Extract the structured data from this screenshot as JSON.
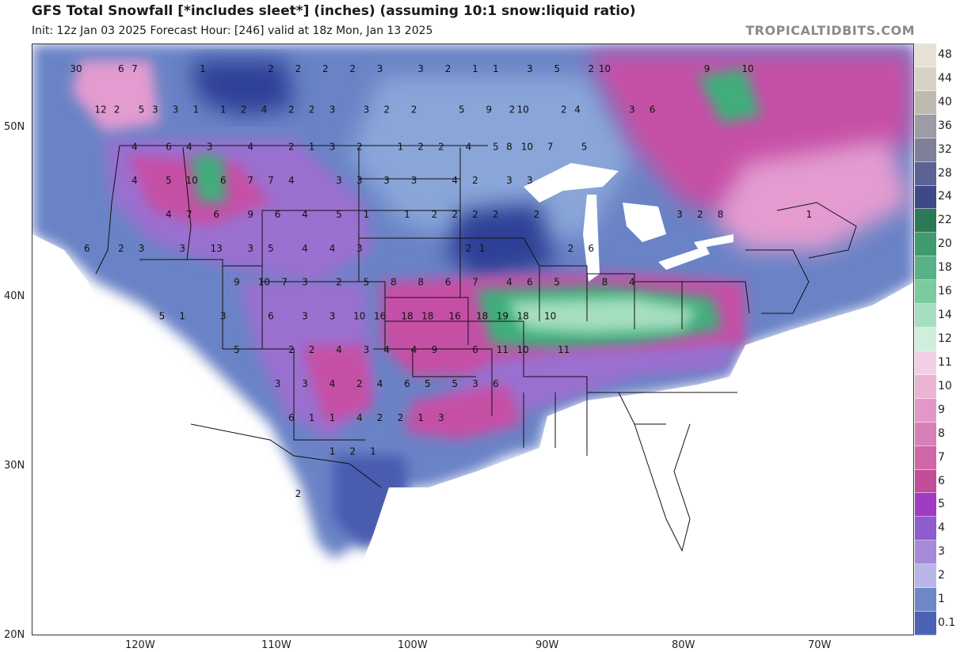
{
  "header": {
    "title": "GFS Total Snowfall [*includes sleet*] (inches) (assuming 10:1 snow:liquid ratio)",
    "subtitle": "Init: 12z Jan 03 2025   Forecast Hour: [246]   valid at 18z Mon, Jan 13 2025",
    "brand": "TROPICALTIDBITS.COM"
  },
  "axes": {
    "lat_labels": [
      "50N",
      "40N",
      "30N",
      "20N"
    ],
    "lon_labels": [
      "120W",
      "110W",
      "100W",
      "90W",
      "80W",
      "70W"
    ]
  },
  "colorbar": {
    "labels": [
      "48",
      "44",
      "40",
      "36",
      "32",
      "28",
      "24",
      "22",
      "20",
      "18",
      "16",
      "14",
      "12",
      "11",
      "10",
      "9",
      "8",
      "7",
      "6",
      "5",
      "4",
      "3",
      "2",
      "1",
      "0.1"
    ],
    "colors": [
      "#e6e3d6",
      "#d6d3c6",
      "#bdbab0",
      "#9c9ba6",
      "#7f7f99",
      "#5c6294",
      "#3e4a88",
      "#2a7a55",
      "#3f9a6e",
      "#58b287",
      "#7ccaa0",
      "#a6dec0",
      "#cfeedd",
      "#f2cfe4",
      "#ebb4d5",
      "#e198c7",
      "#d77fb8",
      "#cf66a8",
      "#c24d9a",
      "#a03ac0",
      "#8e5ccc",
      "#a58ad8",
      "#b8b6e6",
      "#6d88c4",
      "#4b62b5"
    ],
    "extra_colors": [
      "#4a5bb0",
      "#ffffff"
    ]
  },
  "map": {
    "colors": {
      "light_blue": "#8aa6d8",
      "mid_blue": "#6a83c6",
      "deep_blue": "#4a5bb0",
      "navy": "#2f3f96",
      "purple": "#9a6fd0",
      "magenta": "#c64fa6",
      "pink": "#e39bd0",
      "green": "#3fae7a",
      "land_white": "#ffffff",
      "water": "#ffffff"
    },
    "values": [
      {
        "t": "30",
        "lat": 53.6,
        "lon": -124.8
      },
      {
        "t": "6",
        "lat": 53.6,
        "lon": -121.5
      },
      {
        "t": "7",
        "lat": 53.6,
        "lon": -120.5
      },
      {
        "t": "1",
        "lat": 53.6,
        "lon": -115.5
      },
      {
        "t": "2",
        "lat": 53.6,
        "lon": -110.5
      },
      {
        "t": "2",
        "lat": 53.6,
        "lon": -108.5
      },
      {
        "t": "2",
        "lat": 53.6,
        "lon": -106.5
      },
      {
        "t": "2",
        "lat": 53.6,
        "lon": -104.5
      },
      {
        "t": "3",
        "lat": 53.6,
        "lon": -102.5
      },
      {
        "t": "3",
        "lat": 53.6,
        "lon": -99.5
      },
      {
        "t": "2",
        "lat": 53.6,
        "lon": -97.5
      },
      {
        "t": "1",
        "lat": 53.6,
        "lon": -95.5
      },
      {
        "t": "1",
        "lat": 53.6,
        "lon": -94.0
      },
      {
        "t": "3",
        "lat": 53.6,
        "lon": -91.5
      },
      {
        "t": "5",
        "lat": 53.6,
        "lon": -89.5
      },
      {
        "t": "2",
        "lat": 53.6,
        "lon": -87.0
      },
      {
        "t": "10",
        "lat": 53.6,
        "lon": -86.0
      },
      {
        "t": "9",
        "lat": 53.6,
        "lon": -78.5
      },
      {
        "t": "10",
        "lat": 53.6,
        "lon": -75.5
      },
      {
        "t": "12",
        "lat": 51.2,
        "lon": -123.0
      },
      {
        "t": "2",
        "lat": 51.2,
        "lon": -121.8
      },
      {
        "t": "5",
        "lat": 51.2,
        "lon": -120.0
      },
      {
        "t": "3",
        "lat": 51.2,
        "lon": -119.0
      },
      {
        "t": "3",
        "lat": 51.2,
        "lon": -117.5
      },
      {
        "t": "1",
        "lat": 51.2,
        "lon": -116.0
      },
      {
        "t": "1",
        "lat": 51.2,
        "lon": -114.0
      },
      {
        "t": "2",
        "lat": 51.2,
        "lon": -112.5
      },
      {
        "t": "4",
        "lat": 51.2,
        "lon": -111.0
      },
      {
        "t": "2",
        "lat": 51.2,
        "lon": -109.0
      },
      {
        "t": "2",
        "lat": 51.2,
        "lon": -107.5
      },
      {
        "t": "3",
        "lat": 51.2,
        "lon": -106.0
      },
      {
        "t": "3",
        "lat": 51.2,
        "lon": -103.5
      },
      {
        "t": "2",
        "lat": 51.2,
        "lon": -102.0
      },
      {
        "t": "2",
        "lat": 51.2,
        "lon": -100.0
      },
      {
        "t": "5",
        "lat": 51.2,
        "lon": -96.5
      },
      {
        "t": "9",
        "lat": 51.2,
        "lon": -94.5
      },
      {
        "t": "2",
        "lat": 51.2,
        "lon": -92.8
      },
      {
        "t": "10",
        "lat": 51.2,
        "lon": -92.0
      },
      {
        "t": "2",
        "lat": 51.2,
        "lon": -89.0
      },
      {
        "t": "4",
        "lat": 51.2,
        "lon": -88.0
      },
      {
        "t": "3",
        "lat": 51.2,
        "lon": -84.0
      },
      {
        "t": "6",
        "lat": 51.2,
        "lon": -82.5
      },
      {
        "t": "4",
        "lat": 49.0,
        "lon": -120.5
      },
      {
        "t": "6",
        "lat": 49.0,
        "lon": -118.0
      },
      {
        "t": "4",
        "lat": 49.0,
        "lon": -116.5
      },
      {
        "t": "3",
        "lat": 49.0,
        "lon": -115.0
      },
      {
        "t": "4",
        "lat": 49.0,
        "lon": -112.0
      },
      {
        "t": "2",
        "lat": 49.0,
        "lon": -109.0
      },
      {
        "t": "1",
        "lat": 49.0,
        "lon": -107.5
      },
      {
        "t": "3",
        "lat": 49.0,
        "lon": -106.0
      },
      {
        "t": "2",
        "lat": 49.0,
        "lon": -104.0
      },
      {
        "t": "1",
        "lat": 49.0,
        "lon": -101.0
      },
      {
        "t": "2",
        "lat": 49.0,
        "lon": -99.5
      },
      {
        "t": "2",
        "lat": 49.0,
        "lon": -98.0
      },
      {
        "t": "4",
        "lat": 49.0,
        "lon": -96.0
      },
      {
        "t": "5",
        "lat": 49.0,
        "lon": -94.0
      },
      {
        "t": "8",
        "lat": 49.0,
        "lon": -93.0
      },
      {
        "t": "10",
        "lat": 49.0,
        "lon": -91.7
      },
      {
        "t": "7",
        "lat": 49.0,
        "lon": -90.0
      },
      {
        "t": "5",
        "lat": 49.0,
        "lon": -87.5
      },
      {
        "t": "4",
        "lat": 47.0,
        "lon": -120.5
      },
      {
        "t": "5",
        "lat": 47.0,
        "lon": -118.0
      },
      {
        "t": "10",
        "lat": 47.0,
        "lon": -116.3
      },
      {
        "t": "6",
        "lat": 47.0,
        "lon": -114.0
      },
      {
        "t": "7",
        "lat": 47.0,
        "lon": -112.0
      },
      {
        "t": "7",
        "lat": 47.0,
        "lon": -110.5
      },
      {
        "t": "4",
        "lat": 47.0,
        "lon": -109.0
      },
      {
        "t": "3",
        "lat": 47.0,
        "lon": -105.5
      },
      {
        "t": "3",
        "lat": 47.0,
        "lon": -104.0
      },
      {
        "t": "3",
        "lat": 47.0,
        "lon": -102.0
      },
      {
        "t": "3",
        "lat": 47.0,
        "lon": -100.0
      },
      {
        "t": "4",
        "lat": 47.0,
        "lon": -97.0
      },
      {
        "t": "2",
        "lat": 47.0,
        "lon": -95.5
      },
      {
        "t": "3",
        "lat": 47.0,
        "lon": -93.0
      },
      {
        "t": "3",
        "lat": 47.0,
        "lon": -91.5
      },
      {
        "t": "4",
        "lat": 45.0,
        "lon": -118.0
      },
      {
        "t": "7",
        "lat": 45.0,
        "lon": -116.5
      },
      {
        "t": "6",
        "lat": 45.0,
        "lon": -114.5
      },
      {
        "t": "9",
        "lat": 45.0,
        "lon": -112.0
      },
      {
        "t": "6",
        "lat": 45.0,
        "lon": -110.0
      },
      {
        "t": "4",
        "lat": 45.0,
        "lon": -108.0
      },
      {
        "t": "5",
        "lat": 45.0,
        "lon": -105.5
      },
      {
        "t": "1",
        "lat": 45.0,
        "lon": -103.5
      },
      {
        "t": "1",
        "lat": 45.0,
        "lon": -100.5
      },
      {
        "t": "2",
        "lat": 45.0,
        "lon": -98.5
      },
      {
        "t": "2",
        "lat": 45.0,
        "lon": -97.0
      },
      {
        "t": "2",
        "lat": 45.0,
        "lon": -95.5
      },
      {
        "t": "2",
        "lat": 45.0,
        "lon": -94.0
      },
      {
        "t": "2",
        "lat": 45.0,
        "lon": -91.0
      },
      {
        "t": "3",
        "lat": 45.0,
        "lon": -80.5
      },
      {
        "t": "2",
        "lat": 45.0,
        "lon": -79.0
      },
      {
        "t": "8",
        "lat": 45.0,
        "lon": -77.5
      },
      {
        "t": "1",
        "lat": 45.0,
        "lon": -71.0
      },
      {
        "t": "6",
        "lat": 43.0,
        "lon": -124.0
      },
      {
        "t": "2",
        "lat": 43.0,
        "lon": -121.5
      },
      {
        "t": "3",
        "lat": 43.0,
        "lon": -120.0
      },
      {
        "t": "3",
        "lat": 43.0,
        "lon": -117.0
      },
      {
        "t": "13",
        "lat": 43.0,
        "lon": -114.5
      },
      {
        "t": "3",
        "lat": 43.0,
        "lon": -112.0
      },
      {
        "t": "5",
        "lat": 43.0,
        "lon": -110.5
      },
      {
        "t": "4",
        "lat": 43.0,
        "lon": -108.0
      },
      {
        "t": "4",
        "lat": 43.0,
        "lon": -106.0
      },
      {
        "t": "3",
        "lat": 43.0,
        "lon": -104.0
      },
      {
        "t": "2",
        "lat": 43.0,
        "lon": -96.0
      },
      {
        "t": "1",
        "lat": 43.0,
        "lon": -95.0
      },
      {
        "t": "2",
        "lat": 43.0,
        "lon": -88.5
      },
      {
        "t": "6",
        "lat": 43.0,
        "lon": -87.0
      },
      {
        "t": "9",
        "lat": 41.0,
        "lon": -113.0
      },
      {
        "t": "10",
        "lat": 41.0,
        "lon": -111.0
      },
      {
        "t": "7",
        "lat": 41.0,
        "lon": -109.5
      },
      {
        "t": "3",
        "lat": 41.0,
        "lon": -108.0
      },
      {
        "t": "2",
        "lat": 41.0,
        "lon": -105.5
      },
      {
        "t": "5",
        "lat": 41.0,
        "lon": -103.5
      },
      {
        "t": "8",
        "lat": 41.0,
        "lon": -101.5
      },
      {
        "t": "8",
        "lat": 41.0,
        "lon": -99.5
      },
      {
        "t": "6",
        "lat": 41.0,
        "lon": -97.5
      },
      {
        "t": "7",
        "lat": 41.0,
        "lon": -95.5
      },
      {
        "t": "4",
        "lat": 41.0,
        "lon": -93.0
      },
      {
        "t": "6",
        "lat": 41.0,
        "lon": -91.5
      },
      {
        "t": "5",
        "lat": 41.0,
        "lon": -89.5
      },
      {
        "t": "8",
        "lat": 41.0,
        "lon": -86.0
      },
      {
        "t": "4",
        "lat": 41.0,
        "lon": -84.0
      },
      {
        "t": "5",
        "lat": 39.0,
        "lon": -118.5
      },
      {
        "t": "1",
        "lat": 39.0,
        "lon": -117.0
      },
      {
        "t": "3",
        "lat": 39.0,
        "lon": -114.0
      },
      {
        "t": "6",
        "lat": 39.0,
        "lon": -110.5
      },
      {
        "t": "3",
        "lat": 39.0,
        "lon": -108.0
      },
      {
        "t": "3",
        "lat": 39.0,
        "lon": -106.0
      },
      {
        "t": "10",
        "lat": 39.0,
        "lon": -104.0
      },
      {
        "t": "16",
        "lat": 39.0,
        "lon": -102.5
      },
      {
        "t": "18",
        "lat": 39.0,
        "lon": -100.5
      },
      {
        "t": "18",
        "lat": 39.0,
        "lon": -99.0
      },
      {
        "t": "16",
        "lat": 39.0,
        "lon": -97.0
      },
      {
        "t": "18",
        "lat": 39.0,
        "lon": -95.0
      },
      {
        "t": "19",
        "lat": 39.0,
        "lon": -93.5
      },
      {
        "t": "18",
        "lat": 39.0,
        "lon": -92.0
      },
      {
        "t": "10",
        "lat": 39.0,
        "lon": -90.0
      },
      {
        "t": "5",
        "lat": 37.0,
        "lon": -113.0
      },
      {
        "t": "2",
        "lat": 37.0,
        "lon": -109.0
      },
      {
        "t": "2",
        "lat": 37.0,
        "lon": -107.5
      },
      {
        "t": "4",
        "lat": 37.0,
        "lon": -105.5
      },
      {
        "t": "3",
        "lat": 37.0,
        "lon": -103.5
      },
      {
        "t": "4",
        "lat": 37.0,
        "lon": -102.0
      },
      {
        "t": "4",
        "lat": 37.0,
        "lon": -100.0
      },
      {
        "t": "9",
        "lat": 37.0,
        "lon": -98.5
      },
      {
        "t": "6",
        "lat": 37.0,
        "lon": -95.5
      },
      {
        "t": "11",
        "lat": 37.0,
        "lon": -93.5
      },
      {
        "t": "10",
        "lat": 37.0,
        "lon": -92.0
      },
      {
        "t": "11",
        "lat": 37.0,
        "lon": -89.0
      },
      {
        "t": "3",
        "lat": 35.0,
        "lon": -110.0
      },
      {
        "t": "3",
        "lat": 35.0,
        "lon": -108.0
      },
      {
        "t": "4",
        "lat": 35.0,
        "lon": -106.0
      },
      {
        "t": "2",
        "lat": 35.0,
        "lon": -104.0
      },
      {
        "t": "4",
        "lat": 35.0,
        "lon": -102.5
      },
      {
        "t": "6",
        "lat": 35.0,
        "lon": -100.5
      },
      {
        "t": "5",
        "lat": 35.0,
        "lon": -99.0
      },
      {
        "t": "5",
        "lat": 35.0,
        "lon": -97.0
      },
      {
        "t": "3",
        "lat": 35.0,
        "lon": -95.5
      },
      {
        "t": "6",
        "lat": 35.0,
        "lon": -94.0
      },
      {
        "t": "6",
        "lat": 33.0,
        "lon": -109.0
      },
      {
        "t": "1",
        "lat": 33.0,
        "lon": -107.5
      },
      {
        "t": "1",
        "lat": 33.0,
        "lon": -106.0
      },
      {
        "t": "4",
        "lat": 33.0,
        "lon": -104.0
      },
      {
        "t": "2",
        "lat": 33.0,
        "lon": -102.5
      },
      {
        "t": "2",
        "lat": 33.0,
        "lon": -101.0
      },
      {
        "t": "1",
        "lat": 33.0,
        "lon": -99.5
      },
      {
        "t": "3",
        "lat": 33.0,
        "lon": -98.0
      },
      {
        "t": "1",
        "lat": 31.0,
        "lon": -106.0
      },
      {
        "t": "2",
        "lat": 31.0,
        "lon": -104.5
      },
      {
        "t": "1",
        "lat": 31.0,
        "lon": -103.0
      },
      {
        "t": "2",
        "lat": 28.5,
        "lon": -108.5
      }
    ]
  }
}
